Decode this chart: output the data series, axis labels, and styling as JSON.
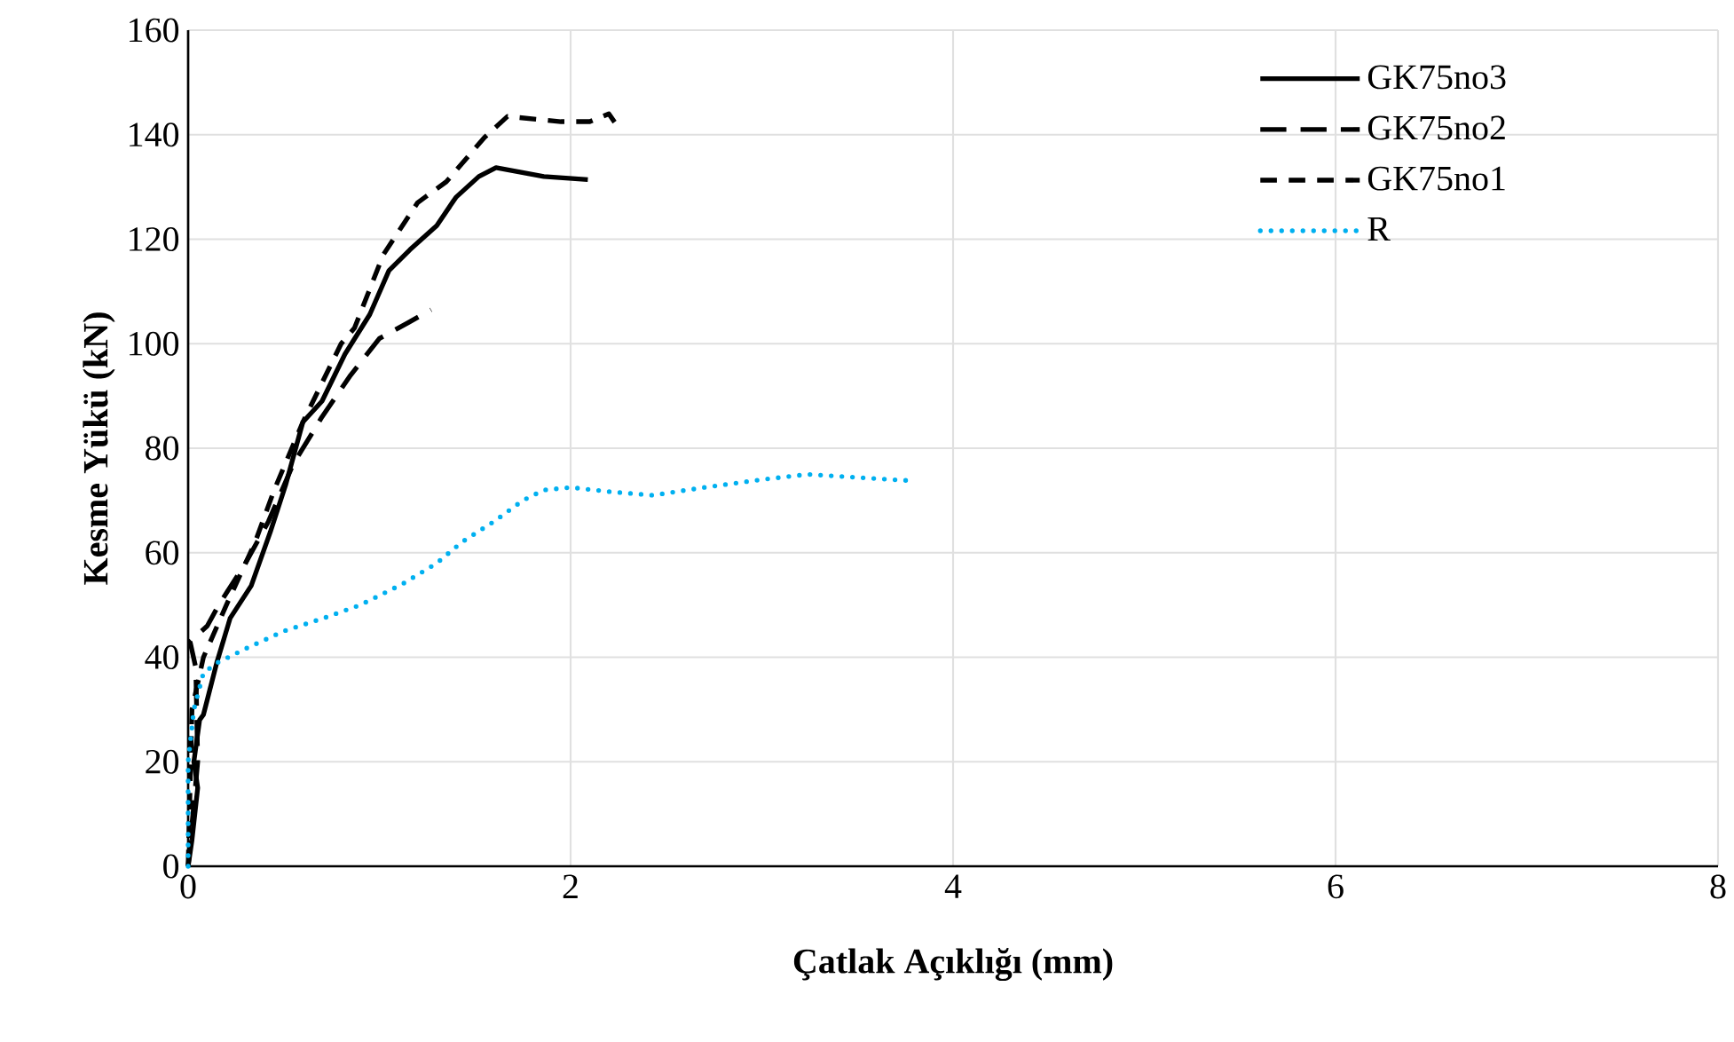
{
  "chart_data": {
    "type": "line",
    "xlabel": "Çatlak Açıklığı (mm)",
    "ylabel": "Kesme Yükü (kN)",
    "xlim": [
      0,
      8
    ],
    "xticks": [
      0,
      2,
      4,
      6,
      8
    ],
    "ylim": [
      0,
      160
    ],
    "yticks": [
      0,
      20,
      40,
      60,
      80,
      100,
      120,
      140,
      160
    ],
    "grid": true,
    "legend": "top right",
    "series": [
      {
        "name": "GK75no3",
        "color": "#000000",
        "line_style": "solid",
        "x": [
          0,
          0.02,
          0.05,
          0.03,
          0.06,
          0.08,
          0.15,
          0.22,
          0.33,
          0.43,
          0.51,
          0.6,
          0.7,
          0.82,
          0.95,
          1.05,
          1.16,
          1.3,
          1.4,
          1.52,
          1.61,
          1.86,
          2.09
        ],
        "values": [
          0,
          5,
          15,
          20,
          28,
          29,
          39,
          47.5,
          53.7,
          64,
          73,
          85,
          89,
          98,
          105.6,
          114,
          118,
          122.6,
          128,
          132,
          133.7,
          132,
          131.4
        ]
      },
      {
        "name": "GK75no2",
        "color": "#000000",
        "line_style": "long dashed",
        "x": [
          0,
          0.05,
          0.04,
          0.01,
          0.1,
          0.16,
          0.3,
          0.42,
          0.55,
          0.7,
          0.85,
          1.0,
          1.15,
          1.27
        ],
        "values": [
          0,
          20,
          38,
          43,
          46,
          50,
          58,
          66,
          77,
          86,
          94,
          101,
          104,
          106.5
        ]
      },
      {
        "name": "GK75no1",
        "color": "#000000",
        "line_style": "dashed",
        "x": [
          0,
          0.02,
          0.08,
          0.2,
          0.35,
          0.45,
          0.6,
          0.8,
          0.87,
          1.02,
          1.2,
          1.35,
          1.55,
          1.67,
          1.95,
          2.1,
          2.2,
          2.23
        ],
        "values": [
          0,
          30,
          40,
          50,
          62,
          72,
          85,
          100,
          103,
          117,
          127,
          131,
          139.5,
          143.5,
          142.5,
          142.5,
          144,
          142.4
        ]
      },
      {
        "name": "R",
        "color": "#00b0f0",
        "line_style": "dotted",
        "x": [
          0,
          0.0,
          0.03,
          0.08,
          0.155,
          0.31,
          0.5,
          0.71,
          0.9,
          1.12,
          1.3,
          1.43,
          1.6,
          1.75,
          1.86,
          2.0,
          2.2,
          2.43,
          2.7,
          3.0,
          3.24,
          3.5,
          3.77
        ],
        "values": [
          0,
          20,
          30,
          37,
          39,
          41.8,
          45,
          47.5,
          50,
          54,
          58,
          62,
          66,
          70,
          72,
          72.5,
          71.7,
          71,
          72.5,
          74,
          75,
          74.4,
          73.8
        ]
      }
    ]
  }
}
